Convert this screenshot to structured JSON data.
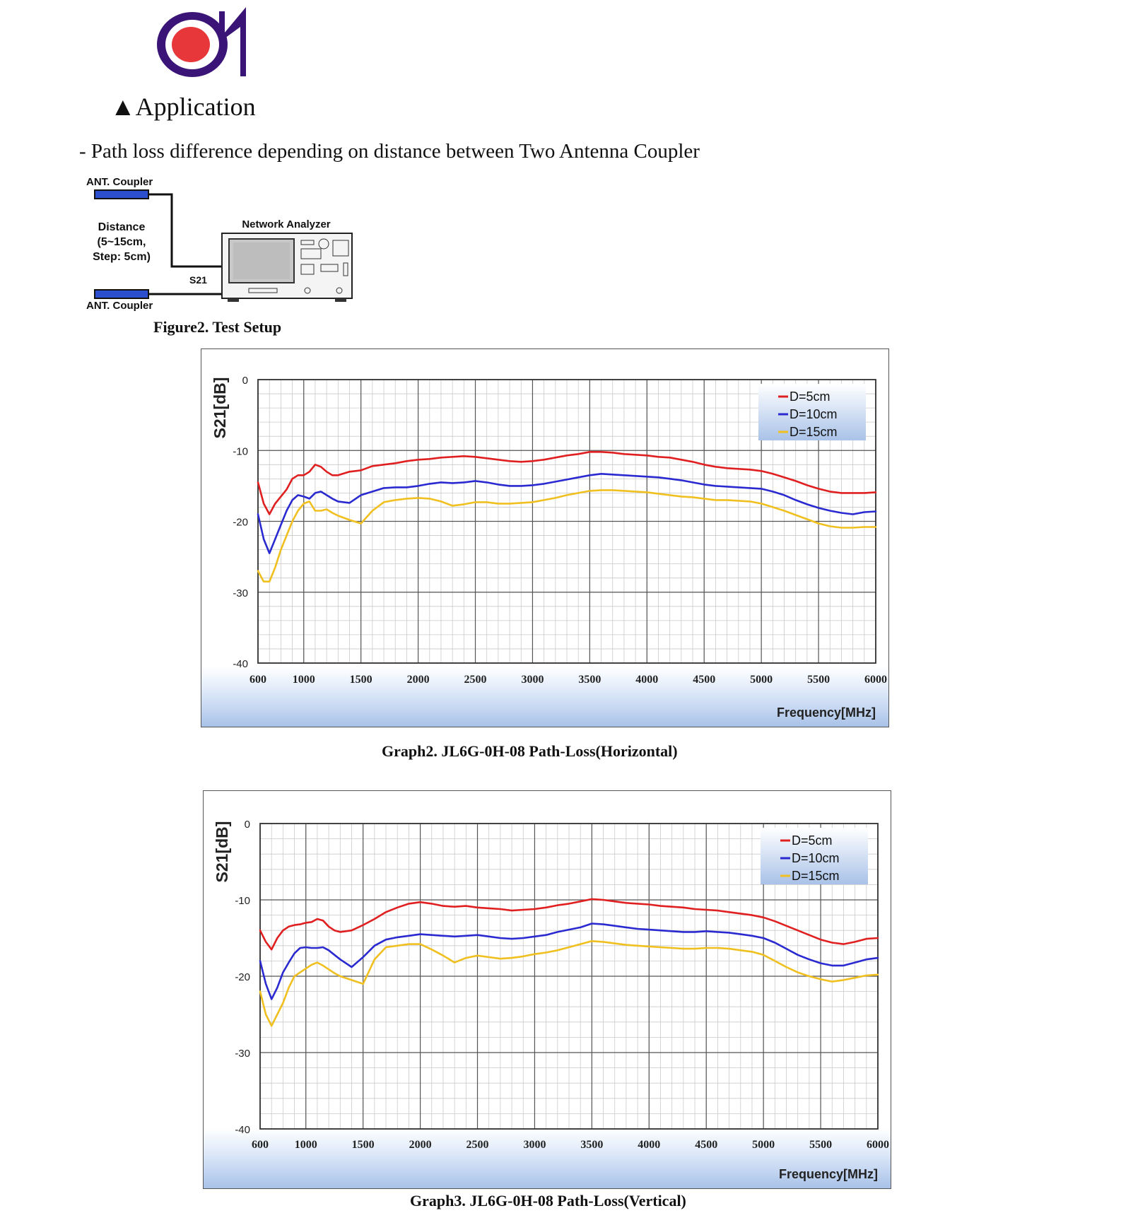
{
  "header": {
    "section_title": "▲Application",
    "intro": "- Path loss difference depending on distance between Two Antenna Coupler"
  },
  "setup": {
    "coupler_top": "ANT. Coupler",
    "coupler_bottom": "ANT. Coupler",
    "distance_line1": "Distance",
    "distance_line2": "(5~15cm,",
    "distance_line3": "Step: 5cm)",
    "analyzer": "Network Analyzer",
    "port": "S21",
    "caption": "Figure2. Test Setup"
  },
  "colors": {
    "logo_ring": "#3a1577",
    "logo_dot": "#e8373a",
    "d5": "#e02020",
    "d10": "#2a2ad0",
    "d15": "#f0c020"
  },
  "chart_data": [
    {
      "type": "line",
      "caption": "Graph2. JL6G-0H-08 Path-Loss(Horizontal)",
      "xlabel": "Frequency[MHz]",
      "ylabel": "S21[dB]",
      "xlim": [
        600,
        6000
      ],
      "ylim": [
        -40,
        0
      ],
      "xticks": [
        600,
        1000,
        1500,
        2000,
        2500,
        3000,
        3500,
        4000,
        4500,
        5000,
        5500,
        6000
      ],
      "yticks": [
        0,
        -10,
        -20,
        -30,
        -40
      ],
      "grid": true,
      "legend": "top-right",
      "series": [
        {
          "name": "D=5cm",
          "color": "#e02020",
          "x": [
            600,
            650,
            700,
            750,
            800,
            850,
            900,
            950,
            1000,
            1050,
            1100,
            1150,
            1200,
            1250,
            1300,
            1400,
            1500,
            1600,
            1700,
            1800,
            1900,
            2000,
            2100,
            2200,
            2300,
            2400,
            2500,
            2600,
            2700,
            2800,
            2900,
            3000,
            3100,
            3200,
            3300,
            3400,
            3500,
            3600,
            3700,
            3800,
            3900,
            4000,
            4100,
            4200,
            4300,
            4400,
            4500,
            4600,
            4700,
            4800,
            4900,
            5000,
            5100,
            5200,
            5300,
            5400,
            5500,
            5600,
            5700,
            5800,
            5900,
            6000
          ],
          "y": [
            -14.5,
            -17.5,
            -19,
            -17.5,
            -16.5,
            -15.5,
            -14,
            -13.5,
            -13.5,
            -13,
            -12,
            -12.3,
            -13,
            -13.5,
            -13.5,
            -13,
            -12.8,
            -12.2,
            -12,
            -11.8,
            -11.5,
            -11.3,
            -11.2,
            -11,
            -10.9,
            -10.8,
            -10.9,
            -11.1,
            -11.3,
            -11.5,
            -11.6,
            -11.5,
            -11.3,
            -11,
            -10.7,
            -10.5,
            -10.2,
            -10.2,
            -10.3,
            -10.5,
            -10.6,
            -10.7,
            -10.9,
            -11,
            -11.3,
            -11.6,
            -12,
            -12.3,
            -12.5,
            -12.6,
            -12.7,
            -12.9,
            -13.3,
            -13.8,
            -14.3,
            -14.9,
            -15.4,
            -15.8,
            -16,
            -16,
            -16,
            -15.9
          ]
        },
        {
          "name": "D=10cm",
          "color": "#2a2ad0",
          "x": [
            600,
            650,
            700,
            750,
            800,
            850,
            900,
            950,
            1000,
            1050,
            1100,
            1150,
            1200,
            1250,
            1300,
            1400,
            1500,
            1600,
            1700,
            1800,
            1900,
            2000,
            2100,
            2200,
            2300,
            2400,
            2500,
            2600,
            2700,
            2800,
            2900,
            3000,
            3100,
            3200,
            3300,
            3400,
            3500,
            3600,
            3700,
            3800,
            3900,
            4000,
            4100,
            4200,
            4300,
            4400,
            4500,
            4600,
            4700,
            4800,
            4900,
            5000,
            5100,
            5200,
            5300,
            5400,
            5500,
            5600,
            5700,
            5800,
            5900,
            6000
          ],
          "y": [
            -19,
            -22.5,
            -24.5,
            -22.5,
            -20.5,
            -18.5,
            -17,
            -16.3,
            -16.5,
            -16.8,
            -16,
            -15.8,
            -16.3,
            -16.8,
            -17.2,
            -17.4,
            -16.3,
            -15.8,
            -15.3,
            -15.2,
            -15.2,
            -15,
            -14.7,
            -14.5,
            -14.6,
            -14.5,
            -14.3,
            -14.5,
            -14.8,
            -15,
            -15,
            -14.9,
            -14.7,
            -14.4,
            -14.1,
            -13.8,
            -13.5,
            -13.3,
            -13.4,
            -13.5,
            -13.6,
            -13.7,
            -13.8,
            -14,
            -14.2,
            -14.5,
            -14.8,
            -15,
            -15.1,
            -15.2,
            -15.3,
            -15.4,
            -15.8,
            -16.3,
            -17,
            -17.6,
            -18.1,
            -18.5,
            -18.8,
            -19,
            -18.7,
            -18.6
          ]
        },
        {
          "name": "D=15cm",
          "color": "#f0c020",
          "x": [
            600,
            650,
            700,
            750,
            800,
            850,
            900,
            950,
            1000,
            1050,
            1100,
            1150,
            1200,
            1250,
            1300,
            1400,
            1500,
            1600,
            1700,
            1800,
            1900,
            2000,
            2100,
            2200,
            2300,
            2400,
            2500,
            2600,
            2700,
            2800,
            2900,
            3000,
            3100,
            3200,
            3300,
            3400,
            3500,
            3600,
            3700,
            3800,
            3900,
            4000,
            4100,
            4200,
            4300,
            4400,
            4500,
            4600,
            4700,
            4800,
            4900,
            5000,
            5100,
            5200,
            5300,
            5400,
            5500,
            5600,
            5700,
            5800,
            5900,
            6000
          ],
          "y": [
            -27,
            -28.5,
            -28.5,
            -26.5,
            -24,
            -22,
            -20,
            -18.5,
            -17.5,
            -17.2,
            -18.5,
            -18.5,
            -18.3,
            -18.8,
            -19.2,
            -19.8,
            -20.3,
            -18.5,
            -17.3,
            -17,
            -16.8,
            -16.7,
            -16.8,
            -17.2,
            -17.8,
            -17.6,
            -17.3,
            -17.3,
            -17.5,
            -17.5,
            -17.4,
            -17.3,
            -17,
            -16.7,
            -16.3,
            -16,
            -15.7,
            -15.6,
            -15.6,
            -15.7,
            -15.8,
            -15.9,
            -16.1,
            -16.3,
            -16.5,
            -16.6,
            -16.8,
            -17,
            -17,
            -17.1,
            -17.2,
            -17.5,
            -18,
            -18.5,
            -19.1,
            -19.7,
            -20.3,
            -20.7,
            -20.9,
            -20.9,
            -20.8,
            -20.8
          ]
        }
      ]
    },
    {
      "type": "line",
      "caption": "Graph3. JL6G-0H-08 Path-Loss(Vertical)",
      "xlabel": "Frequency[MHz]",
      "ylabel": "S21[dB]",
      "xlim": [
        600,
        6000
      ],
      "ylim": [
        -40,
        0
      ],
      "xticks": [
        600,
        1000,
        1500,
        2000,
        2500,
        3000,
        3500,
        4000,
        4500,
        5000,
        5500,
        6000
      ],
      "yticks": [
        0,
        -10,
        -20,
        -30,
        -40
      ],
      "grid": true,
      "legend": "top-right",
      "series": [
        {
          "name": "D=5cm",
          "color": "#e02020",
          "x": [
            600,
            650,
            700,
            750,
            800,
            850,
            900,
            950,
            1000,
            1050,
            1100,
            1150,
            1200,
            1250,
            1300,
            1400,
            1500,
            1600,
            1700,
            1800,
            1900,
            2000,
            2100,
            2200,
            2300,
            2400,
            2500,
            2600,
            2700,
            2800,
            2900,
            3000,
            3100,
            3200,
            3300,
            3400,
            3500,
            3600,
            3700,
            3800,
            3900,
            4000,
            4100,
            4200,
            4300,
            4400,
            4500,
            4600,
            4700,
            4800,
            4900,
            5000,
            5100,
            5200,
            5300,
            5400,
            5500,
            5600,
            5700,
            5800,
            5900,
            6000
          ],
          "y": [
            -14,
            -15.5,
            -16.5,
            -15,
            -14,
            -13.5,
            -13.3,
            -13.2,
            -13,
            -12.9,
            -12.5,
            -12.7,
            -13.5,
            -14,
            -14.2,
            -14,
            -13.3,
            -12.5,
            -11.6,
            -11,
            -10.5,
            -10.3,
            -10.5,
            -10.8,
            -10.9,
            -10.8,
            -11,
            -11.1,
            -11.2,
            -11.4,
            -11.3,
            -11.2,
            -11,
            -10.7,
            -10.5,
            -10.2,
            -9.9,
            -10,
            -10.2,
            -10.4,
            -10.5,
            -10.6,
            -10.8,
            -10.9,
            -11,
            -11.2,
            -11.3,
            -11.4,
            -11.6,
            -11.8,
            -12,
            -12.3,
            -12.8,
            -13.4,
            -14,
            -14.6,
            -15.2,
            -15.6,
            -15.8,
            -15.5,
            -15.1,
            -15
          ]
        },
        {
          "name": "D=10cm",
          "color": "#2a2ad0",
          "x": [
            600,
            650,
            700,
            750,
            800,
            850,
            900,
            950,
            1000,
            1050,
            1100,
            1150,
            1200,
            1250,
            1300,
            1400,
            1500,
            1600,
            1700,
            1800,
            1900,
            2000,
            2100,
            2200,
            2300,
            2400,
            2500,
            2600,
            2700,
            2800,
            2900,
            3000,
            3100,
            3200,
            3300,
            3400,
            3500,
            3600,
            3700,
            3800,
            3900,
            4000,
            4100,
            4200,
            4300,
            4400,
            4500,
            4600,
            4700,
            4800,
            4900,
            5000,
            5100,
            5200,
            5300,
            5400,
            5500,
            5600,
            5700,
            5800,
            5900,
            6000
          ],
          "y": [
            -18,
            -21,
            -23,
            -21.5,
            -19.5,
            -18.2,
            -17,
            -16.3,
            -16.2,
            -16.3,
            -16.3,
            -16.2,
            -16.6,
            -17.2,
            -17.8,
            -18.8,
            -17.5,
            -16,
            -15.2,
            -14.9,
            -14.7,
            -14.5,
            -14.6,
            -14.7,
            -14.8,
            -14.7,
            -14.6,
            -14.8,
            -15,
            -15.1,
            -15,
            -14.8,
            -14.6,
            -14.2,
            -13.9,
            -13.6,
            -13.1,
            -13.2,
            -13.4,
            -13.6,
            -13.8,
            -13.9,
            -14,
            -14.1,
            -14.2,
            -14.2,
            -14.1,
            -14.2,
            -14.3,
            -14.5,
            -14.7,
            -15,
            -15.6,
            -16.4,
            -17.2,
            -17.8,
            -18.3,
            -18.6,
            -18.6,
            -18.2,
            -17.8,
            -17.6
          ]
        },
        {
          "name": "D=15cm",
          "color": "#f0c020",
          "x": [
            600,
            650,
            700,
            750,
            800,
            850,
            900,
            950,
            1000,
            1050,
            1100,
            1150,
            1200,
            1250,
            1300,
            1400,
            1500,
            1600,
            1700,
            1800,
            1900,
            2000,
            2100,
            2200,
            2300,
            2400,
            2500,
            2600,
            2700,
            2800,
            2900,
            3000,
            3100,
            3200,
            3300,
            3400,
            3500,
            3600,
            3700,
            3800,
            3900,
            4000,
            4100,
            4200,
            4300,
            4400,
            4500,
            4600,
            4700,
            4800,
            4900,
            5000,
            5100,
            5200,
            5300,
            5400,
            5500,
            5600,
            5700,
            5800,
            5900,
            6000
          ],
          "y": [
            -22,
            -25,
            -26.5,
            -25,
            -23.5,
            -21.5,
            -20,
            -19.5,
            -19,
            -18.5,
            -18.2,
            -18.6,
            -19.1,
            -19.6,
            -20,
            -20.5,
            -21,
            -17.8,
            -16.2,
            -16,
            -15.8,
            -15.8,
            -16.5,
            -17.3,
            -18.2,
            -17.6,
            -17.3,
            -17.5,
            -17.7,
            -17.6,
            -17.4,
            -17.1,
            -16.9,
            -16.6,
            -16.2,
            -15.8,
            -15.4,
            -15.5,
            -15.7,
            -15.9,
            -16,
            -16.1,
            -16.2,
            -16.3,
            -16.4,
            -16.4,
            -16.3,
            -16.3,
            -16.4,
            -16.6,
            -16.8,
            -17.2,
            -18,
            -18.8,
            -19.5,
            -20,
            -20.4,
            -20.7,
            -20.5,
            -20.2,
            -19.9,
            -19.8
          ]
        }
      ]
    }
  ]
}
